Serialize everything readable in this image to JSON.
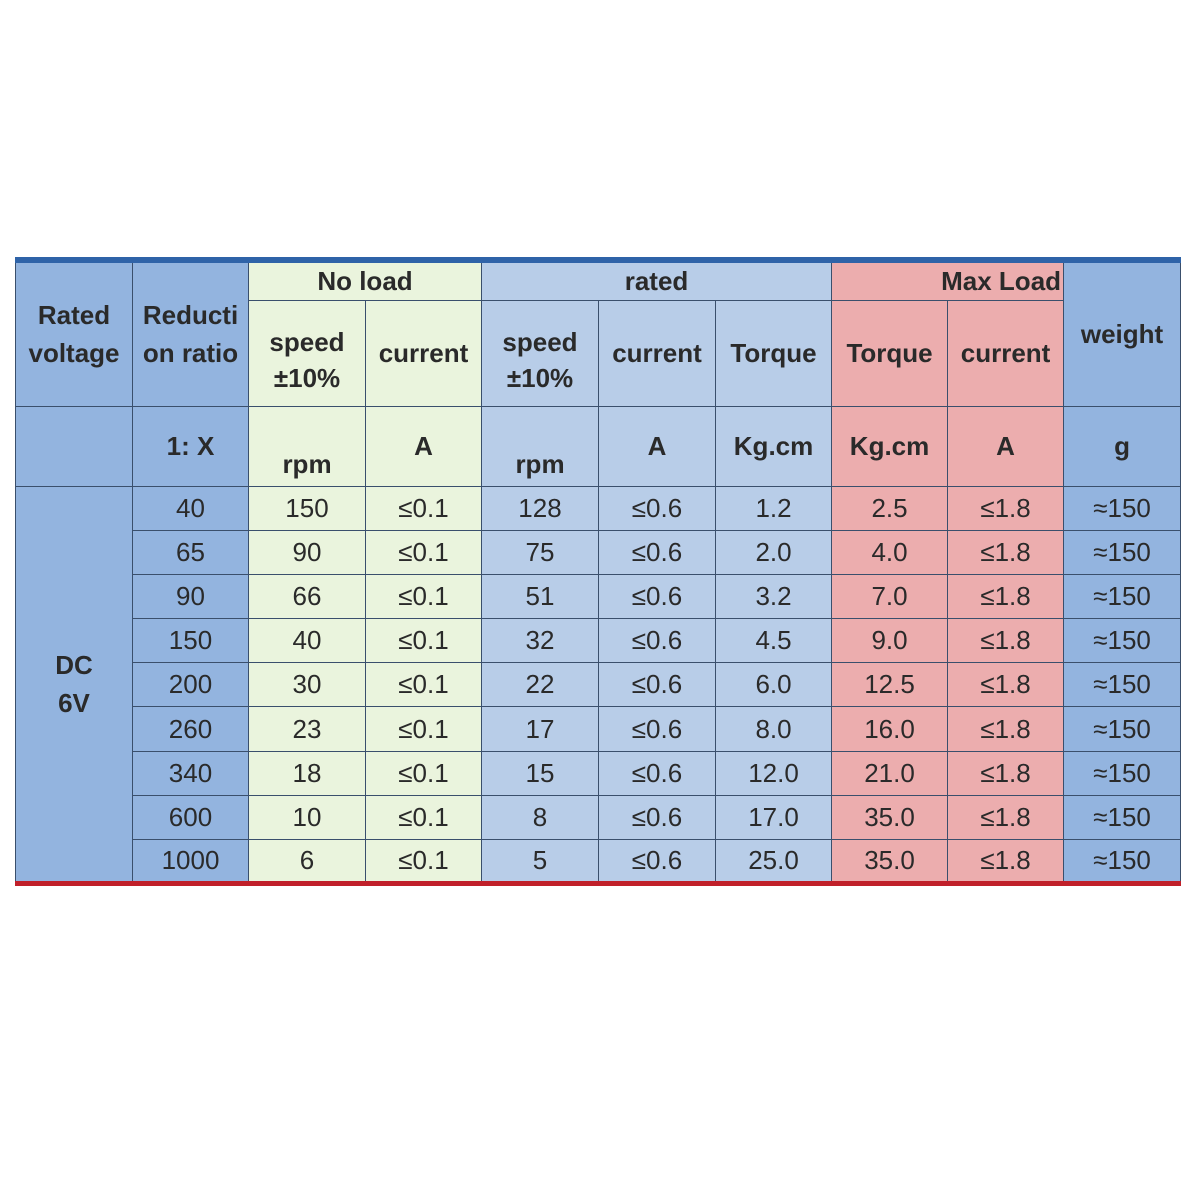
{
  "headers": {
    "rated_voltage": "Rated voltage",
    "reduction_ratio": "Reducti on ratio",
    "no_load": "No load",
    "rated": "rated",
    "max_load": "Max Load",
    "weight": "weight"
  },
  "subheaders": {
    "no_load_speed": "speed ±10%",
    "no_load_current": "current",
    "rated_speed": "speed ±10%",
    "rated_current": "current",
    "rated_torque": "Torque",
    "max_torque": "Torque",
    "max_current": "current"
  },
  "units": {
    "ratio": "1: X",
    "no_load_speed": "rpm",
    "no_load_current": "A",
    "rated_speed": "rpm",
    "rated_current": "A",
    "rated_torque": "Kg.cm",
    "max_torque": "Kg.cm",
    "max_current": "A",
    "weight": "g"
  },
  "voltage": "DC 6V",
  "rows": [
    {
      "ratio": "40",
      "nl_speed": "150",
      "nl_current": "≤0.1",
      "r_speed": "128",
      "r_current": "≤0.6",
      "r_torque": "1.2",
      "m_torque": "2.5",
      "m_current": "≤1.8",
      "weight": "≈150"
    },
    {
      "ratio": "65",
      "nl_speed": "90",
      "nl_current": "≤0.1",
      "r_speed": "75",
      "r_current": "≤0.6",
      "r_torque": "2.0",
      "m_torque": "4.0",
      "m_current": "≤1.8",
      "weight": "≈150"
    },
    {
      "ratio": "90",
      "nl_speed": "66",
      "nl_current": "≤0.1",
      "r_speed": "51",
      "r_current": "≤0.6",
      "r_torque": "3.2",
      "m_torque": "7.0",
      "m_current": "≤1.8",
      "weight": "≈150"
    },
    {
      "ratio": "150",
      "nl_speed": "40",
      "nl_current": "≤0.1",
      "r_speed": "32",
      "r_current": "≤0.6",
      "r_torque": "4.5",
      "m_torque": "9.0",
      "m_current": "≤1.8",
      "weight": "≈150"
    },
    {
      "ratio": "200",
      "nl_speed": "30",
      "nl_current": "≤0.1",
      "r_speed": "22",
      "r_current": "≤0.6",
      "r_torque": "6.0",
      "m_torque": "12.5",
      "m_current": "≤1.8",
      "weight": "≈150"
    },
    {
      "ratio": "260",
      "nl_speed": "23",
      "nl_current": "≤0.1",
      "r_speed": "17",
      "r_current": "≤0.6",
      "r_torque": "8.0",
      "m_torque": "16.0",
      "m_current": "≤1.8",
      "weight": "≈150"
    },
    {
      "ratio": "340",
      "nl_speed": "18",
      "nl_current": "≤0.1",
      "r_speed": "15",
      "r_current": "≤0.6",
      "r_torque": "12.0",
      "m_torque": "21.0",
      "m_current": "≤1.8",
      "weight": "≈150"
    },
    {
      "ratio": "600",
      "nl_speed": "10",
      "nl_current": "≤0.1",
      "r_speed": "8",
      "r_current": "≤0.6",
      "r_torque": "17.0",
      "m_torque": "35.0",
      "m_current": "≤1.8",
      "weight": "≈150"
    },
    {
      "ratio": "1000",
      "nl_speed": "6",
      "nl_current": "≤0.1",
      "r_speed": "5",
      "r_current": "≤0.6",
      "r_torque": "25.0",
      "m_torque": "35.0",
      "m_current": "≤1.8",
      "weight": "≈150"
    }
  ],
  "colors": {
    "header_blue": "#93b4df",
    "no_load_green": "#eaf4dd",
    "rated_blue": "#b8cde8",
    "max_load_pink": "#ecadae",
    "top_border": "#2f63a8",
    "bottom_border": "#c0202a"
  }
}
